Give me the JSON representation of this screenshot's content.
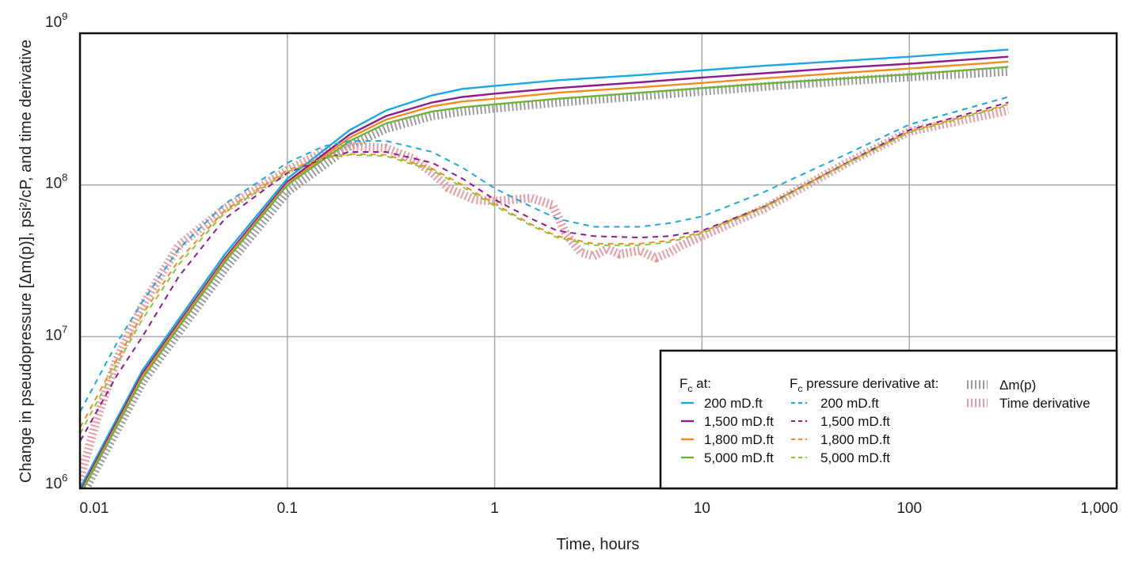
{
  "chart_data": {
    "type": "line",
    "xscale": "log",
    "yscale": "log",
    "xlim": [
      0.01,
      1000
    ],
    "ylim": [
      1000000,
      1000000000
    ],
    "grid": true,
    "xlabel": "Time, hours",
    "ylabel": "Change in pseudopressure [Δm(p)], psi²/cP, and time derivative",
    "xticks": [
      {
        "value": 0.01,
        "label": "0.01"
      },
      {
        "value": 0.1,
        "label": "0.1"
      },
      {
        "value": 1,
        "label": "1"
      },
      {
        "value": 10,
        "label": "10"
      },
      {
        "value": 100,
        "label": "100"
      },
      {
        "value": 1000,
        "label": "1,000"
      }
    ],
    "yticks": [
      {
        "value": 1000000,
        "base": "10",
        "exp": "6"
      },
      {
        "value": 10000000,
        "base": "10",
        "exp": "7"
      },
      {
        "value": 100000000,
        "base": "10",
        "exp": "8"
      },
      {
        "value": 1000000000,
        "base": "10",
        "exp": "9"
      }
    ],
    "legend": {
      "position": "bottom-right",
      "col1_title_main": "F",
      "col1_title_sub": "c",
      "col1_title_rest": " at:",
      "col2_title_main": "F",
      "col2_title_sub": "c",
      "col2_title_rest": " pressure derivative at:"
    },
    "series": [
      {
        "name": "200 mD.ft",
        "group": "Fc",
        "color": "#1ba8e0",
        "style": "solid",
        "x": [
          0.01,
          0.02,
          0.05,
          0.1,
          0.2,
          0.3,
          0.5,
          0.7,
          1,
          2,
          5,
          10,
          20,
          50,
          100,
          300
        ],
        "y": [
          1000000,
          6000000,
          35000000,
          110000000,
          230000000,
          310000000,
          390000000,
          430000000,
          450000000,
          490000000,
          530000000,
          570000000,
          610000000,
          660000000,
          700000000,
          780000000
        ]
      },
      {
        "name": "1,500 mD.ft",
        "group": "Fc",
        "color": "#8b1d8c",
        "style": "solid",
        "x": [
          0.01,
          0.02,
          0.05,
          0.1,
          0.2,
          0.3,
          0.5,
          0.7,
          1,
          2,
          5,
          10,
          20,
          50,
          100,
          300
        ],
        "y": [
          950000,
          5700000,
          33000000,
          105000000,
          215000000,
          285000000,
          350000000,
          380000000,
          400000000,
          435000000,
          475000000,
          510000000,
          545000000,
          595000000,
          630000000,
          700000000
        ]
      },
      {
        "name": "1,800 mD.ft",
        "group": "Fc",
        "color": "#f28c1e",
        "style": "solid",
        "x": [
          0.01,
          0.02,
          0.05,
          0.1,
          0.2,
          0.3,
          0.5,
          0.7,
          1,
          2,
          5,
          10,
          20,
          50,
          100,
          300
        ],
        "y": [
          920000,
          5500000,
          32000000,
          102000000,
          205000000,
          270000000,
          330000000,
          355000000,
          370000000,
          405000000,
          440000000,
          470000000,
          505000000,
          550000000,
          585000000,
          650000000
        ]
      },
      {
        "name": "5,000 mD.ft",
        "group": "Fc",
        "color": "#6db33f",
        "style": "solid",
        "x": [
          0.01,
          0.02,
          0.05,
          0.1,
          0.2,
          0.3,
          0.5,
          0.7,
          1,
          2,
          5,
          10,
          20,
          50,
          100,
          300
        ],
        "y": [
          900000,
          5300000,
          31000000,
          100000000,
          195000000,
          255000000,
          305000000,
          325000000,
          340000000,
          370000000,
          405000000,
          435000000,
          465000000,
          505000000,
          535000000,
          600000000
        ]
      },
      {
        "name": "200 mD.ft",
        "group": "Fc derivative",
        "color": "#1ba8e0",
        "style": "dashed",
        "x": [
          0.0095,
          0.015,
          0.02,
          0.03,
          0.05,
          0.1,
          0.15,
          0.2,
          0.3,
          0.5,
          0.7,
          1,
          1.5,
          2,
          3,
          5,
          7,
          10,
          20,
          50,
          100,
          300
        ],
        "y": [
          2800000,
          9000000,
          17000000,
          38000000,
          75000000,
          140000000,
          180000000,
          195000000,
          195000000,
          165000000,
          130000000,
          95000000,
          72000000,
          60000000,
          53000000,
          53000000,
          56000000,
          62000000,
          90000000,
          160000000,
          250000000,
          380000000
        ]
      },
      {
        "name": "1,500 mD.ft",
        "group": "Fc derivative",
        "color": "#8b1d8c",
        "style": "dashed",
        "x": [
          0.0095,
          0.015,
          0.02,
          0.03,
          0.05,
          0.1,
          0.15,
          0.2,
          0.3,
          0.5,
          0.7,
          1,
          1.5,
          2,
          3,
          5,
          7,
          10,
          20,
          50,
          100,
          300
        ],
        "y": [
          1800000,
          5500000,
          10000000,
          25000000,
          60000000,
          120000000,
          150000000,
          165000000,
          165000000,
          140000000,
          110000000,
          80000000,
          60000000,
          50000000,
          46000000,
          45000000,
          46000000,
          50000000,
          72000000,
          140000000,
          230000000,
          350000000
        ]
      },
      {
        "name": "1,800 mD.ft",
        "group": "Fc derivative",
        "color": "#f28c1e",
        "style": "dashed",
        "x": [
          0.0095,
          0.015,
          0.02,
          0.03,
          0.05,
          0.1,
          0.15,
          0.2,
          0.3,
          0.5,
          0.7,
          1,
          1.5,
          2,
          3,
          5,
          7,
          10,
          20,
          50,
          100,
          300
        ],
        "y": [
          2200000,
          7000000,
          14000000,
          32000000,
          68000000,
          125000000,
          152000000,
          160000000,
          158000000,
          128000000,
          100000000,
          75000000,
          55000000,
          46000000,
          41000000,
          41000000,
          43000000,
          49000000,
          72000000,
          140000000,
          225000000,
          340000000
        ]
      },
      {
        "name": "5,000 mD.ft",
        "group": "Fc derivative",
        "color": "#8cc63f",
        "style": "dashed",
        "x": [
          0.0095,
          0.015,
          0.02,
          0.03,
          0.05,
          0.1,
          0.15,
          0.2,
          0.3,
          0.5,
          0.7,
          1,
          1.5,
          2,
          3,
          5,
          7,
          10,
          20,
          50,
          100,
          300
        ],
        "y": [
          2000000,
          6500000,
          13000000,
          30000000,
          66000000,
          122000000,
          150000000,
          158000000,
          155000000,
          125000000,
          97000000,
          73000000,
          54000000,
          45000000,
          40000000,
          40000000,
          42000000,
          48000000,
          71000000,
          138000000,
          222000000,
          335000000
        ]
      },
      {
        "name": "Δm(p)",
        "group": "measured",
        "color": "#9b9b9b",
        "style": "hatched",
        "x": [
          0.01,
          0.02,
          0.05,
          0.1,
          0.2,
          0.3,
          0.5,
          0.7,
          1,
          2,
          5,
          10,
          20,
          50,
          100,
          300
        ],
        "y": [
          850000,
          5000000,
          28000000,
          90000000,
          180000000,
          235000000,
          285000000,
          305000000,
          320000000,
          350000000,
          385000000,
          415000000,
          445000000,
          485000000,
          515000000,
          560000000
        ]
      },
      {
        "name": "Time derivative",
        "group": "measured",
        "color": "#e89a9f",
        "style": "hatched",
        "x": [
          0.0095,
          0.012,
          0.015,
          0.02,
          0.03,
          0.05,
          0.1,
          0.15,
          0.2,
          0.3,
          0.4,
          0.5,
          0.6,
          0.8,
          1,
          1.5,
          1.9,
          2.2,
          2.6,
          3,
          3.5,
          4,
          5,
          6,
          7,
          8,
          10,
          20,
          50,
          100,
          300
        ],
        "y": [
          900000,
          2800000,
          7000000,
          16000000,
          40000000,
          70000000,
          125000000,
          165000000,
          180000000,
          175000000,
          150000000,
          120000000,
          95000000,
          80000000,
          78000000,
          82000000,
          74000000,
          48000000,
          36000000,
          34000000,
          38000000,
          35000000,
          37000000,
          33000000,
          36000000,
          40000000,
          46000000,
          70000000,
          140000000,
          225000000,
          310000000
        ]
      }
    ]
  }
}
